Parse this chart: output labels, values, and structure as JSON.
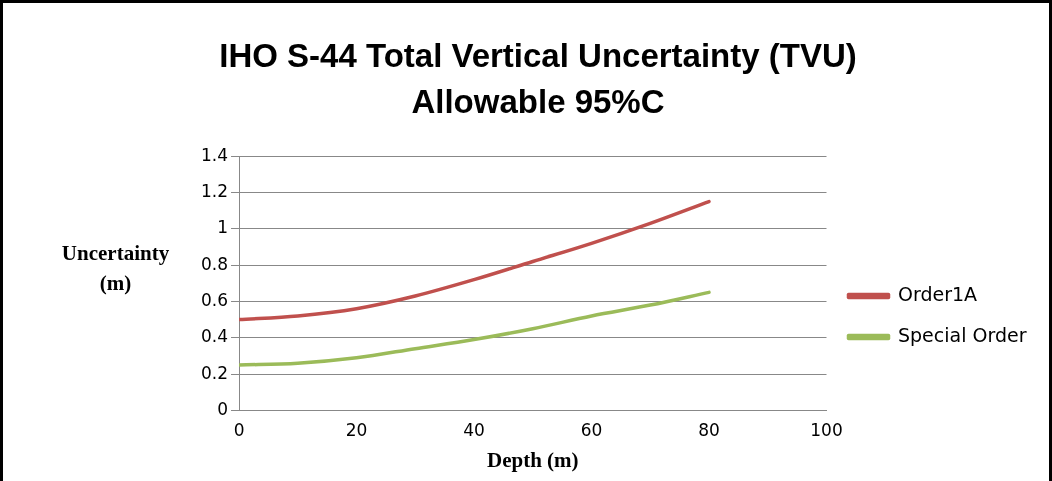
{
  "chart_data": {
    "type": "line",
    "title": "IHO S-44 Total Vertical Uncertainty (TVU) Allowable 95%C",
    "xlabel": "Depth (m)",
    "ylabel": "Uncertainty (m)",
    "x": [
      0,
      10,
      20,
      30,
      40,
      50,
      60,
      70,
      80
    ],
    "series": [
      {
        "name": "Order1A",
        "color": "#c0504d",
        "values": [
          0.5,
          0.52,
          0.56,
          0.63,
          0.72,
          0.82,
          0.92,
          1.03,
          1.15
        ]
      },
      {
        "name": "Special Order",
        "color": "#9bbb59",
        "values": [
          0.25,
          0.26,
          0.29,
          0.34,
          0.39,
          0.45,
          0.52,
          0.58,
          0.65
        ]
      }
    ],
    "xlim": [
      0,
      100
    ],
    "xticks": [
      0,
      20,
      40,
      60,
      80,
      100
    ],
    "ylim": [
      0,
      1.4
    ],
    "yticks": [
      0,
      0.2,
      0.4,
      0.6,
      0.8,
      1,
      1.2,
      1.4
    ],
    "grid": "y",
    "legend": "right",
    "marker": "none",
    "line_style": "solid"
  }
}
